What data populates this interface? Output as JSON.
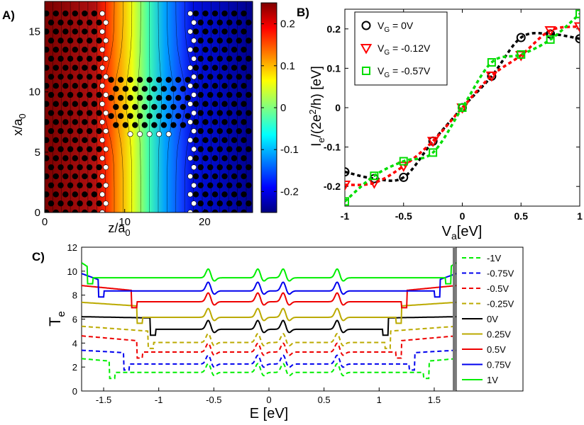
{
  "chart_data": [
    {
      "id": "A",
      "panel_label": "A)",
      "type": "heatmap",
      "xlabel": "z/a",
      "xlabel_sub": "0",
      "ylabel": "x/a",
      "ylabel_sub": "0",
      "xlim": [
        0,
        26
      ],
      "ylim": [
        0,
        17.5
      ],
      "xticks": [
        0,
        10,
        20
      ],
      "yticks": [
        0,
        5,
        10,
        15
      ],
      "colorbar": {
        "range": [
          -0.25,
          0.25
        ],
        "ticks": [
          0.2,
          0.1,
          0,
          -0.1,
          -0.2
        ],
        "tick_labels": [
          "0.2",
          "0.1",
          "0",
          "-0.1",
          "-0.2"
        ]
      },
      "lattice_rows": 23,
      "lattice_spacing": 0.75,
      "left_lead": {
        "z_min": 0,
        "z_max": 7.5
      },
      "right_lead": {
        "z_min": 18.5,
        "z_max": 26
      },
      "scatter": {
        "z_min": 7.5,
        "z_max": 18.5,
        "x_min": 6.5,
        "x_max": 11.5
      },
      "boundary_columns_z": [
        7.2,
        18.2
      ]
    },
    {
      "id": "B",
      "panel_label": "B)",
      "type": "line",
      "xlabel": "V",
      "xlabel_sub": "a",
      "xlabel_unit": "[eV]",
      "ylabel_parts": [
        "I",
        "e",
        "/(2e",
        "2",
        "/h) [eV]"
      ],
      "xlim": [
        -1,
        1
      ],
      "ylim": [
        -0.25,
        0.25
      ],
      "xticks": [
        -1,
        -0.5,
        0,
        0.5,
        1
      ],
      "xtick_labels": [
        "-1",
        "-0.5",
        "0",
        "0.5",
        "1"
      ],
      "yticks": [
        -0.2,
        -0.1,
        0,
        0.1,
        0.2
      ],
      "ytick_labels": [
        "-0.2",
        "-0.1",
        "0",
        "0.1",
        "0.2"
      ],
      "x": [
        -1,
        -0.75,
        -0.5,
        -0.25,
        0,
        0.25,
        0.5,
        0.75,
        1
      ],
      "series": [
        {
          "name": "V_G = 0V",
          "legend_main": "V",
          "legend_sub": "G",
          "legend_value": "=  0V",
          "color": "#000000",
          "marker": "circle",
          "values": [
            -0.163,
            -0.18,
            -0.177,
            -0.085,
            0.0,
            0.08,
            0.178,
            0.187,
            0.175
          ]
        },
        {
          "name": "V_G = -0.12V",
          "legend_main": "V",
          "legend_sub": "G",
          "legend_value": "= -0.12V",
          "color": "#ff0000",
          "marker": "triangle-down",
          "values": [
            -0.196,
            -0.191,
            -0.148,
            -0.085,
            0.0,
            0.081,
            0.133,
            0.196,
            0.206
          ]
        },
        {
          "name": "V_G = -0.57V",
          "legend_main": "V",
          "legend_sub": "G",
          "legend_value": "= -0.57V",
          "color": "#00dd00",
          "marker": "square",
          "values": [
            -0.238,
            -0.173,
            -0.136,
            -0.114,
            0.0,
            0.115,
            0.135,
            0.173,
            0.238
          ]
        }
      ]
    },
    {
      "id": "C",
      "panel_label": "C)",
      "type": "line",
      "xlabel": "E [eV]",
      "ylabel": "T",
      "ylabel_sub": "e",
      "xlim": [
        -1.7,
        1.7
      ],
      "ylim": [
        0,
        12
      ],
      "xticks": [
        -1.5,
        -1,
        -0.5,
        0,
        0.5,
        1,
        1.5
      ],
      "xtick_labels": [
        "-1.5",
        "-1",
        "-0.5",
        "0",
        "0.5",
        "1",
        "1.5"
      ],
      "yticks": [
        0,
        2,
        4,
        6,
        8,
        10,
        12
      ],
      "ytick_labels": [
        "0",
        "2",
        "4",
        "6",
        "8",
        "10",
        "12"
      ],
      "series": [
        {
          "name": "-1V",
          "color": "#00ee00",
          "dash": true,
          "base": 1.3,
          "step_e": 1.45,
          "start_val": 2.5
        },
        {
          "name": "-0.75V",
          "color": "#0000ee",
          "dash": true,
          "base": 2.0,
          "step_e": 1.32,
          "start_val": 3.2
        },
        {
          "name": "-0.5V",
          "color": "#ee0000",
          "dash": true,
          "base": 3.0,
          "step_e": 1.2,
          "start_val": 4.4
        },
        {
          "name": "-0.25V",
          "color": "#bbaa00",
          "dash": true,
          "base": 3.8,
          "step_e": 1.1,
          "start_val": 5.2
        },
        {
          "name": "0V",
          "color": "#000000",
          "dash": false,
          "base": 4.9,
          "step_e": 1.08,
          "start_val": 6.0
        },
        {
          "name": "0.25V",
          "color": "#bbaa00",
          "dash": false,
          "base": 5.9,
          "step_e": 1.2,
          "start_val": 7.2
        },
        {
          "name": "0.5V",
          "color": "#ee0000",
          "dash": false,
          "base": 7.2,
          "step_e": 1.25,
          "start_val": 8.6
        },
        {
          "name": "0.75V",
          "color": "#0000ee",
          "dash": false,
          "base": 8.1,
          "step_e": 1.55,
          "start_val": 9.6
        },
        {
          "name": "1V",
          "color": "#00ee00",
          "dash": false,
          "base": 9.2,
          "step_e": 1.65,
          "start_val": 10.5
        }
      ],
      "peak_energies": [
        -0.55,
        -0.1,
        0.13,
        0.62
      ]
    }
  ]
}
